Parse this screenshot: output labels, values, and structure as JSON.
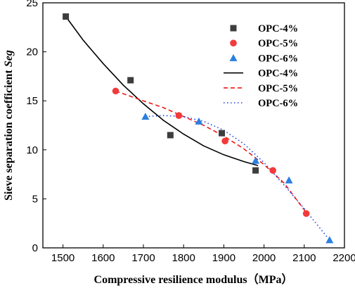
{
  "chart_data": {
    "type": "scatter",
    "xlabel": "Compressive resilience modulus（MPa）",
    "ylabel_main": "Sieve separation coefficient ",
    "ylabel_italic": "Seg",
    "xlim": [
      1450,
      2200
    ],
    "ylim": [
      0,
      25
    ],
    "xticks": [
      1500,
      1600,
      1700,
      1800,
      1900,
      2000,
      2100,
      2200
    ],
    "yticks": [
      0,
      5,
      10,
      15,
      20,
      25
    ],
    "grid": false,
    "legend_position": "top-right",
    "series": [
      {
        "name": "OPC-4%",
        "kind": "points",
        "marker": "square",
        "color": "#3d3d3d",
        "points": [
          [
            1507,
            23.6
          ],
          [
            1668,
            17.1
          ],
          [
            1767,
            11.5
          ],
          [
            1895,
            11.7
          ],
          [
            1979,
            7.9
          ]
        ]
      },
      {
        "name": "OPC-5%",
        "kind": "points",
        "marker": "circle",
        "color": "#f23a3a",
        "points": [
          [
            1631,
            16.0
          ],
          [
            1788,
            13.5
          ],
          [
            1903,
            10.9
          ],
          [
            2022,
            7.9
          ],
          [
            2105,
            3.5
          ]
        ]
      },
      {
        "name": "OPC-6%",
        "kind": "points",
        "marker": "triangle",
        "color": "#2a7fe0",
        "points": [
          [
            1705,
            13.4
          ],
          [
            1838,
            12.9
          ],
          [
            1979,
            8.9
          ],
          [
            2062,
            6.9
          ],
          [
            2163,
            0.8
          ]
        ]
      },
      {
        "name": "OPC-4%",
        "kind": "fit",
        "dash": "solid",
        "color": "#000000",
        "points": [
          [
            1507,
            23.6
          ],
          [
            1550,
            21.2
          ],
          [
            1600,
            18.8
          ],
          [
            1650,
            16.6
          ],
          [
            1700,
            14.7
          ],
          [
            1750,
            13.0
          ],
          [
            1800,
            11.6
          ],
          [
            1850,
            10.4
          ],
          [
            1900,
            9.5
          ],
          [
            1950,
            8.8
          ],
          [
            1985,
            8.4
          ]
        ]
      },
      {
        "name": "OPC-5%",
        "kind": "fit",
        "dash": "dashed",
        "color": "#f01818",
        "points": [
          [
            1631,
            16.0
          ],
          [
            1700,
            15.0
          ],
          [
            1750,
            14.3
          ],
          [
            1800,
            13.4
          ],
          [
            1850,
            12.5
          ],
          [
            1900,
            11.4
          ],
          [
            1950,
            10.1
          ],
          [
            2000,
            8.5
          ],
          [
            2050,
            6.6
          ],
          [
            2105,
            3.6
          ]
        ]
      },
      {
        "name": "OPC-6%",
        "kind": "fit",
        "dash": "dotted",
        "color": "#1d3fe0",
        "points": [
          [
            1705,
            13.4
          ],
          [
            1750,
            13.5
          ],
          [
            1800,
            13.4
          ],
          [
            1850,
            12.9
          ],
          [
            1900,
            12.0
          ],
          [
            1950,
            10.6
          ],
          [
            2000,
            8.7
          ],
          [
            2050,
            6.4
          ],
          [
            2100,
            4.0
          ],
          [
            2163,
            0.8
          ]
        ]
      }
    ]
  }
}
